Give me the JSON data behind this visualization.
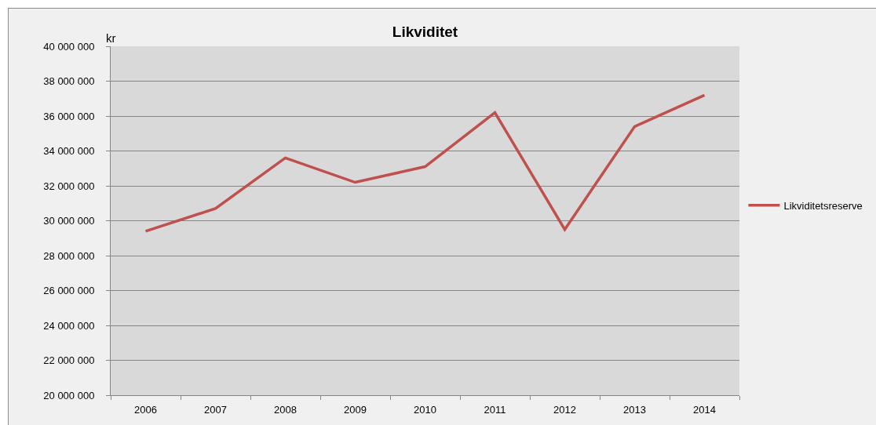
{
  "chart_data": {
    "type": "line",
    "title": "Likviditet",
    "ylabel": "kr",
    "categories": [
      "2006",
      "2007",
      "2008",
      "2009",
      "2010",
      "2011",
      "2012",
      "2013",
      "2014"
    ],
    "series": [
      {
        "name": "Likviditetsreserve",
        "color": "#c0504d",
        "values": [
          29400000,
          30700000,
          33600000,
          32200000,
          33100000,
          36200000,
          29500000,
          35400000,
          37200000
        ]
      }
    ],
    "ylim": [
      20000000,
      40000000
    ],
    "yticks": [
      {
        "value": 20000000,
        "label": "20 000 000"
      },
      {
        "value": 22000000,
        "label": "22 000 000"
      },
      {
        "value": 24000000,
        "label": "24 000 000"
      },
      {
        "value": 26000000,
        "label": "26 000 000"
      },
      {
        "value": 28000000,
        "label": "28 000 000"
      },
      {
        "value": 30000000,
        "label": "30 000 000"
      },
      {
        "value": 32000000,
        "label": "32 000 000"
      },
      {
        "value": 34000000,
        "label": "34 000 000"
      },
      {
        "value": 36000000,
        "label": "36 000 000"
      },
      {
        "value": 38000000,
        "label": "38 000 000"
      },
      {
        "value": 40000000,
        "label": "40 000 000"
      }
    ],
    "grid": "y",
    "legend": "right",
    "marker": "none",
    "line_style": "solid"
  }
}
